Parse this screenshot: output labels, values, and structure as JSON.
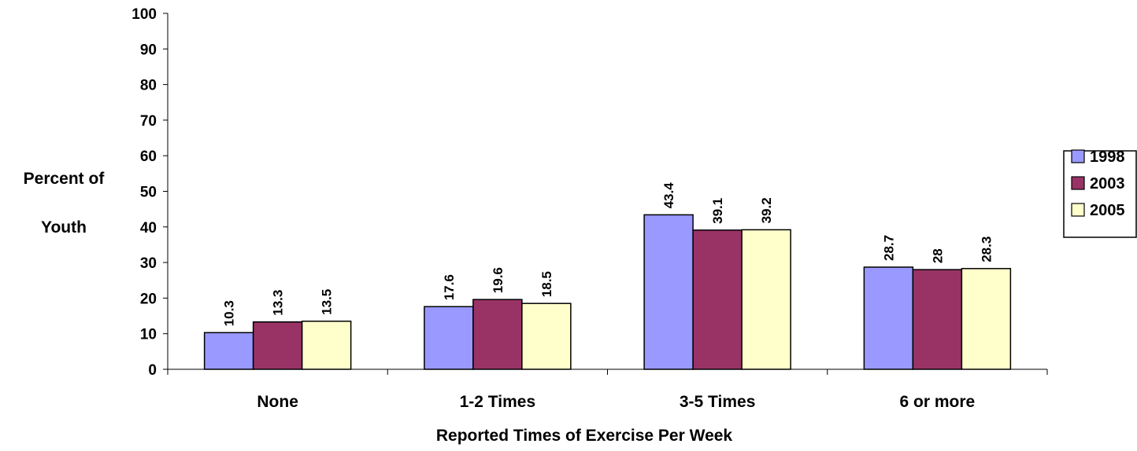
{
  "chart_data": {
    "type": "bar",
    "title": "",
    "ylabel_lines": [
      "Percent of",
      "Youth"
    ],
    "xlabel": "Reported Times of Exercise Per Week",
    "categories": [
      "None",
      "1-2 Times",
      "3-5 Times",
      "6 or more"
    ],
    "series": [
      {
        "name": "1998",
        "values": [
          10.3,
          17.6,
          43.4,
          28.7
        ],
        "color": "#9999ff"
      },
      {
        "name": "2003",
        "values": [
          13.3,
          19.6,
          39.1,
          28
        ],
        "color": "#993366"
      },
      {
        "name": "2005",
        "values": [
          13.5,
          18.5,
          39.2,
          28.3
        ],
        "color": "#ffffcc"
      }
    ],
    "ylim": [
      0,
      100
    ],
    "yticks": [
      0,
      10,
      20,
      30,
      40,
      50,
      60,
      70,
      80,
      90,
      100
    ],
    "grid": false,
    "legend_position": "right"
  }
}
